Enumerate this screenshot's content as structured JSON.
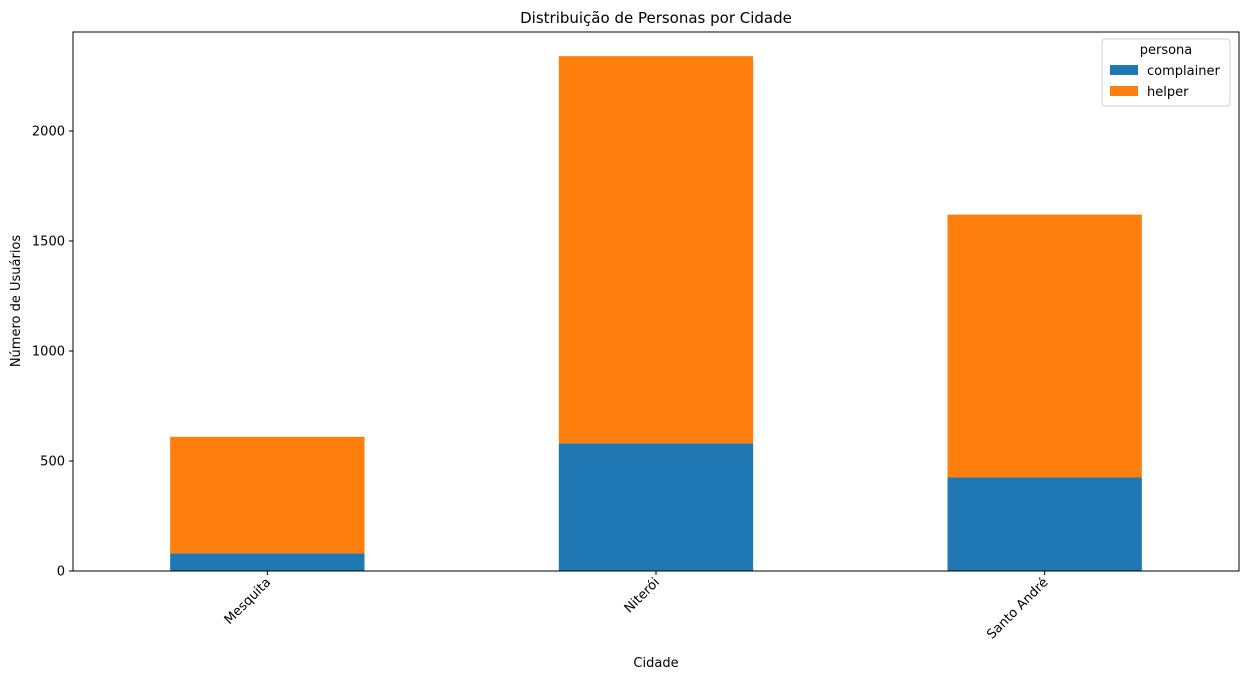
{
  "chart_data": {
    "type": "bar",
    "stacked": true,
    "title": "Distribuição de Personas por Cidade",
    "xlabel": "Cidade",
    "ylabel": "Número de Usuários",
    "categories": [
      "Mesquita",
      "Niterói",
      "Santo André"
    ],
    "series": [
      {
        "name": "complainer",
        "values": [
          80,
          580,
          425
        ],
        "color": "#1f77b4"
      },
      {
        "name": "helper",
        "values": [
          530,
          1760,
          1195
        ],
        "color": "#ff7f0e"
      }
    ],
    "ylim": [
      0,
      2450
    ],
    "yticks": [
      0,
      500,
      1000,
      1500,
      2000
    ],
    "grid": false,
    "legend": {
      "title": "persona",
      "placement": "top-right"
    }
  }
}
